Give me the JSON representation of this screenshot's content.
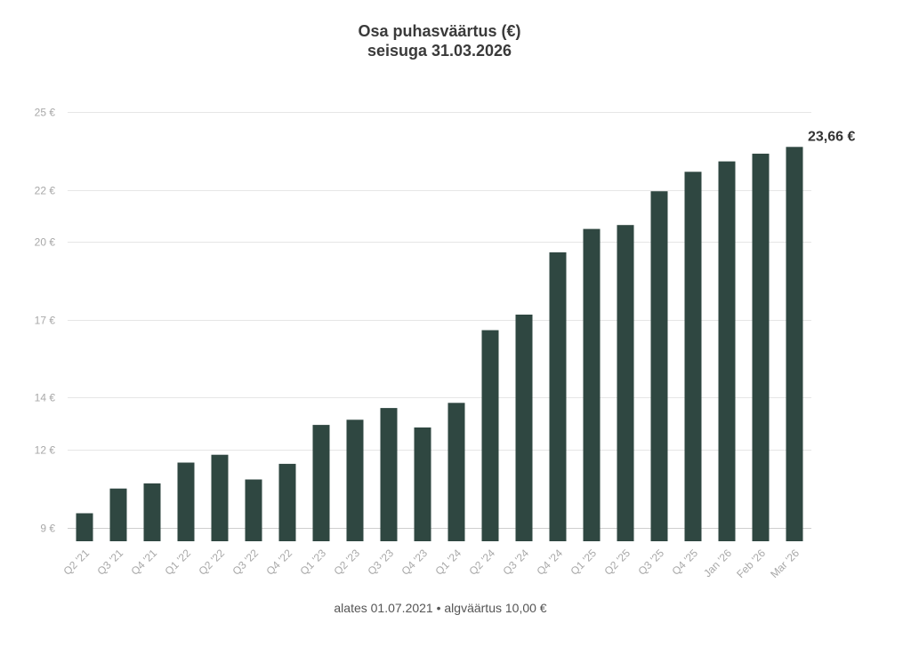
{
  "chart_data": {
    "type": "bar",
    "title": "Osa puhasväärtus (€)",
    "subtitle": "seisuga 31.03.2026",
    "categories": [
      "Q2 '21",
      "Q3 '21",
      "Q4 '21",
      "Q1 '22",
      "Q2 '22",
      "Q3 '22",
      "Q4 '22",
      "Q1 '23",
      "Q2 '23",
      "Q3 '23",
      "Q4 '23",
      "Q1 '24",
      "Q2 '24",
      "Q3 '24",
      "Q4 '24",
      "Q1 '25",
      "Q2 '25",
      "Q3 '25",
      "Q4 '25",
      "Jan '26",
      "Feb '26",
      "Mar '26"
    ],
    "values": [
      9.55,
      10.5,
      10.7,
      11.5,
      11.8,
      10.85,
      11.45,
      12.95,
      13.15,
      13.6,
      12.85,
      13.8,
      16.6,
      17.2,
      19.6,
      20.5,
      20.65,
      21.95,
      22.7,
      23.1,
      23.4,
      23.66
    ],
    "yticks": [
      9,
      12,
      14,
      17,
      20,
      22,
      25
    ],
    "ytick_labels": [
      "9 €",
      "12 €",
      "14 €",
      "17 €",
      "20 €",
      "22 €",
      "25 €"
    ],
    "ylim": [
      8.47,
      26.51
    ],
    "last_value_label": "23,66 €",
    "bar_color": "#2f4741",
    "grid": true
  },
  "footnote": "alates 01.07.2021 • algväärtus 10,00 €"
}
